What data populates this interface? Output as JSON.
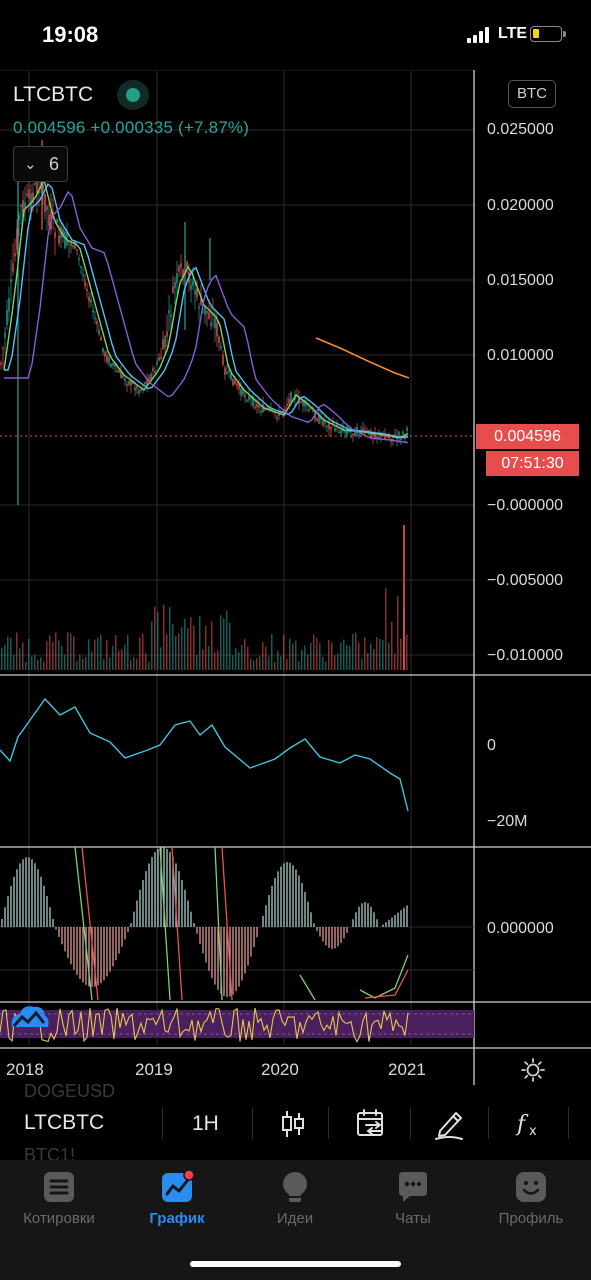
{
  "status_bar": {
    "time": "19:08",
    "network": "LTE"
  },
  "chart": {
    "symbol": "LTCBTC",
    "price": "0.004596",
    "change": "+0.000335",
    "change_pct": "(+7.87%)",
    "indicators_count": "6",
    "currency": "BTC",
    "price_tag": "0.004596",
    "countdown": "07:51:30",
    "price_axis": [
      "0.025000",
      "0.020000",
      "0.015000",
      "0.010000",
      "−0.000000",
      "−0.005000",
      "−0.010000"
    ],
    "volume_axis": [
      "0",
      "−20M"
    ],
    "oscillator_axis": [
      "0.000000"
    ],
    "time_axis": [
      "2018",
      "2019",
      "2020",
      "2021"
    ],
    "colors": {
      "up": "#26a69a",
      "down": "#ef5350",
      "last_price": "#e84d4d",
      "ma_fast": "#7bd36a",
      "ma_mid": "#4fc3f7",
      "ma_slow": "#8a5cd6",
      "ma_long": "#f28c28",
      "volume_line": "#3fc4e0",
      "rsi_line": "#e8c64a",
      "rsi_band": "#4a1f5e"
    }
  },
  "toolbar": {
    "symbol": "LTCBTC",
    "interval": "1H",
    "ghost_above": "DOGEUSD",
    "ghost_below": "BTC1!",
    "icons": [
      "candlestick-icon",
      "compare-icon",
      "drawing-pen-icon",
      "indicators-fx-icon"
    ]
  },
  "tabs": [
    {
      "label": "Котировки",
      "icon": "quotes-icon",
      "active": false
    },
    {
      "label": "График",
      "icon": "chart-icon",
      "active": true
    },
    {
      "label": "Идеи",
      "icon": "ideas-bulb-icon",
      "active": false
    },
    {
      "label": "Чаты",
      "icon": "chats-icon",
      "active": false
    },
    {
      "label": "Профиль",
      "icon": "profile-icon",
      "active": false
    }
  ]
}
